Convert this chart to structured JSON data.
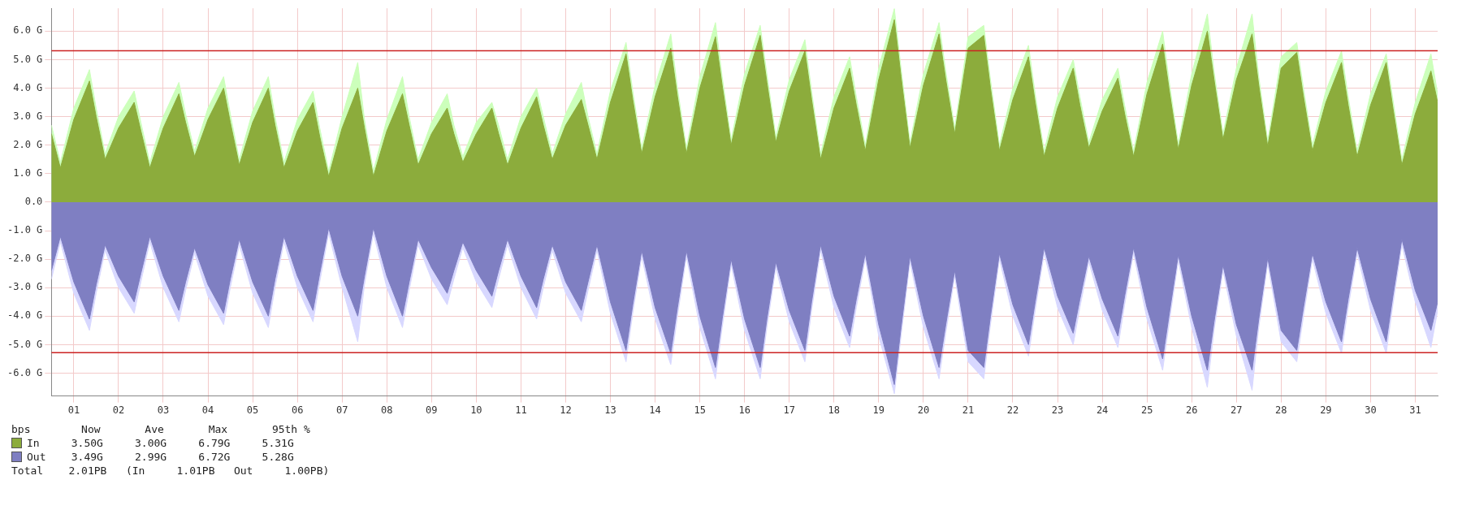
{
  "chart_data": {
    "type": "area",
    "x": [
      0,
      0.2,
      0.5,
      0.85,
      1,
      1.2,
      1.5,
      1.85,
      2,
      2.2,
      2.5,
      2.85,
      3,
      3.2,
      3.5,
      3.85,
      4,
      4.2,
      4.5,
      4.85,
      5,
      5.2,
      5.5,
      5.85,
      6,
      6.2,
      6.5,
      6.85,
      7,
      7.2,
      7.5,
      7.85,
      8,
      8.2,
      8.5,
      8.85,
      9,
      9.2,
      9.5,
      9.85,
      10,
      10.2,
      10.5,
      10.85,
      11,
      11.2,
      11.5,
      11.85,
      12,
      12.2,
      12.5,
      12.85,
      13,
      13.2,
      13.5,
      13.85,
      14,
      14.2,
      14.5,
      14.85,
      15,
      15.2,
      15.5,
      15.85,
      16,
      16.2,
      16.5,
      16.85,
      17,
      17.2,
      17.5,
      17.85,
      18,
      18.2,
      18.5,
      18.85,
      19,
      19.2,
      19.5,
      19.85,
      20,
      20.2,
      20.5,
      20.85,
      21,
      21.2,
      21.5,
      21.85,
      22,
      22.2,
      22.5,
      22.85,
      23,
      23.2,
      23.5,
      23.85,
      24,
      24.2,
      24.5,
      24.85,
      25,
      25.2,
      25.5,
      25.85,
      26,
      26.2,
      26.5,
      26.85,
      27,
      27.2,
      27.5,
      27.85,
      28,
      28.2,
      28.5,
      28.85,
      29,
      29.2,
      29.5,
      29.85,
      30,
      30.2,
      30.5,
      30.85,
      31
    ],
    "series": [
      {
        "color": "#ccffbb",
        "values": [
          2.7,
          1.4,
          3.3,
          4.65,
          3.3,
          1.7,
          3.0,
          3.9,
          2.8,
          1.4,
          3.0,
          4.2,
          3.1,
          1.8,
          3.3,
          4.4,
          3.1,
          1.5,
          3.2,
          4.4,
          3.0,
          1.4,
          2.9,
          3.9,
          2.6,
          1.1,
          3.0,
          4.9,
          2.9,
          1.1,
          2.9,
          4.4,
          3.0,
          1.5,
          2.8,
          3.8,
          2.7,
          1.6,
          2.8,
          3.5,
          2.7,
          1.5,
          3.0,
          4.0,
          3.0,
          1.7,
          3.1,
          4.2,
          3.0,
          1.7,
          3.9,
          5.6,
          3.9,
          1.9,
          4.1,
          5.9,
          4.0,
          1.9,
          4.4,
          6.3,
          4.4,
          2.2,
          4.5,
          6.2,
          4.5,
          2.3,
          4.3,
          5.7,
          3.9,
          1.7,
          3.7,
          5.1,
          3.7,
          2.0,
          4.7,
          6.79,
          4.7,
          2.1,
          4.5,
          6.3,
          4.6,
          2.6,
          5.8,
          6.2,
          4.3,
          2.0,
          4.0,
          5.5,
          3.8,
          1.8,
          3.7,
          5.0,
          3.7,
          2.1,
          3.6,
          4.7,
          3.4,
          1.8,
          4.2,
          6.0,
          4.2,
          2.05,
          4.5,
          6.6,
          4.6,
          2.4,
          4.7,
          6.6,
          4.4,
          2.15,
          5.1,
          5.6,
          4.0,
          2.0,
          3.9,
          5.3,
          3.7,
          1.8,
          3.8,
          5.2,
          3.6,
          1.5,
          3.5,
          5.2,
          3.8
        ]
      },
      {
        "name": "In",
        "color": "#8cac3c",
        "values": [
          2.4,
          1.2,
          2.9,
          4.25,
          3.0,
          1.5,
          2.6,
          3.5,
          2.5,
          1.2,
          2.6,
          3.8,
          2.8,
          1.6,
          2.9,
          4.0,
          2.8,
          1.3,
          2.8,
          4.0,
          2.7,
          1.2,
          2.5,
          3.5,
          2.3,
          0.9,
          2.6,
          4.0,
          2.6,
          0.9,
          2.5,
          3.8,
          2.7,
          1.3,
          2.4,
          3.3,
          2.4,
          1.4,
          2.4,
          3.3,
          2.4,
          1.3,
          2.6,
          3.7,
          2.7,
          1.5,
          2.7,
          3.6,
          2.7,
          1.5,
          3.5,
          5.2,
          3.6,
          1.7,
          3.7,
          5.4,
          3.7,
          1.7,
          4.0,
          5.8,
          4.1,
          2.0,
          4.1,
          5.85,
          4.2,
          2.1,
          3.9,
          5.3,
          3.6,
          1.5,
          3.3,
          4.7,
          3.4,
          1.8,
          4.3,
          6.4,
          4.4,
          1.9,
          4.1,
          5.9,
          4.3,
          2.4,
          5.4,
          5.85,
          4.0,
          1.8,
          3.6,
          5.1,
          3.5,
          1.6,
          3.3,
          4.7,
          3.4,
          1.9,
          3.2,
          4.35,
          3.1,
          1.6,
          3.8,
          5.55,
          3.9,
          1.85,
          4.1,
          6.0,
          4.3,
          2.2,
          4.3,
          5.9,
          4.1,
          1.95,
          4.7,
          5.25,
          3.7,
          1.8,
          3.5,
          4.9,
          3.4,
          1.6,
          3.4,
          4.9,
          3.3,
          1.3,
          3.1,
          4.6,
          3.5
        ]
      },
      {
        "color": "#d8d8ff",
        "values": [
          -2.7,
          -1.4,
          -3.2,
          -4.5,
          -3.2,
          -1.7,
          -3.0,
          -3.9,
          -2.8,
          -1.4,
          -3.0,
          -4.2,
          -3.1,
          -1.8,
          -3.3,
          -4.3,
          -3.0,
          -1.5,
          -3.2,
          -4.4,
          -3.0,
          -1.4,
          -3.0,
          -4.2,
          -2.8,
          -1.1,
          -3.0,
          -4.9,
          -2.9,
          -1.1,
          -3.0,
          -4.4,
          -3.1,
          -1.5,
          -2.7,
          -3.6,
          -2.7,
          -1.6,
          -2.8,
          -3.7,
          -2.7,
          -1.5,
          -3.0,
          -4.1,
          -3.0,
          -1.7,
          -3.2,
          -4.2,
          -3.1,
          -1.7,
          -3.9,
          -5.6,
          -3.9,
          -1.9,
          -4.1,
          -5.7,
          -4.0,
          -1.9,
          -4.4,
          -6.2,
          -4.4,
          -2.2,
          -4.5,
          -6.2,
          -4.4,
          -2.3,
          -4.2,
          -5.6,
          -3.8,
          -1.7,
          -3.7,
          -5.1,
          -3.7,
          -2.0,
          -4.7,
          -6.72,
          -4.7,
          -2.1,
          -4.4,
          -6.2,
          -4.6,
          -2.6,
          -5.6,
          -6.2,
          -4.3,
          -2.0,
          -4.0,
          -5.4,
          -3.8,
          -1.8,
          -3.7,
          -5.0,
          -3.7,
          -2.1,
          -3.8,
          -5.1,
          -3.6,
          -1.8,
          -4.1,
          -5.9,
          -4.2,
          -2.05,
          -4.4,
          -6.5,
          -4.5,
          -2.4,
          -4.7,
          -6.6,
          -4.4,
          -2.15,
          -4.9,
          -5.6,
          -4.0,
          -2.0,
          -3.9,
          -5.3,
          -3.7,
          -1.8,
          -3.8,
          -5.3,
          -3.6,
          -1.5,
          -3.5,
          -5.1,
          -3.8
        ]
      },
      {
        "name": "Out",
        "color": "#7f7fc2",
        "values": [
          -2.4,
          -1.2,
          -2.8,
          -4.1,
          -2.9,
          -1.5,
          -2.6,
          -3.5,
          -2.5,
          -1.2,
          -2.6,
          -3.8,
          -2.8,
          -1.6,
          -2.9,
          -3.9,
          -2.7,
          -1.3,
          -2.8,
          -4.0,
          -2.7,
          -1.2,
          -2.6,
          -3.8,
          -2.5,
          -0.9,
          -2.6,
          -4.0,
          -2.6,
          -0.9,
          -2.6,
          -4.0,
          -2.8,
          -1.3,
          -2.3,
          -3.2,
          -2.4,
          -1.4,
          -2.4,
          -3.3,
          -2.4,
          -1.3,
          -2.6,
          -3.7,
          -2.7,
          -1.5,
          -2.8,
          -3.8,
          -2.8,
          -1.5,
          -3.5,
          -5.2,
          -3.6,
          -1.7,
          -3.7,
          -5.3,
          -3.7,
          -1.7,
          -4.0,
          -5.8,
          -4.1,
          -2.0,
          -4.1,
          -5.8,
          -4.1,
          -2.1,
          -3.8,
          -5.2,
          -3.5,
          -1.5,
          -3.3,
          -4.7,
          -3.4,
          -1.8,
          -4.3,
          -6.4,
          -4.4,
          -1.9,
          -4.0,
          -5.8,
          -4.3,
          -2.4,
          -5.2,
          -5.8,
          -4.0,
          -1.8,
          -3.6,
          -5.0,
          -3.5,
          -1.6,
          -3.3,
          -4.6,
          -3.4,
          -1.9,
          -3.4,
          -4.7,
          -3.3,
          -1.6,
          -3.7,
          -5.5,
          -3.9,
          -1.85,
          -4.0,
          -5.9,
          -4.2,
          -2.2,
          -4.3,
          -5.9,
          -4.1,
          -1.95,
          -4.5,
          -5.2,
          -3.7,
          -1.8,
          -3.5,
          -4.9,
          -3.4,
          -1.6,
          -3.4,
          -4.9,
          -3.3,
          -1.3,
          -3.1,
          -4.5,
          -3.5
        ]
      }
    ],
    "xlim": [
      0,
      31
    ],
    "xticks": [
      {
        "value": 0.5,
        "label": "01"
      },
      {
        "value": 1.5,
        "label": "02"
      },
      {
        "value": 2.5,
        "label": "03"
      },
      {
        "value": 3.5,
        "label": "04"
      },
      {
        "value": 4.5,
        "label": "05"
      },
      {
        "value": 5.5,
        "label": "06"
      },
      {
        "value": 6.5,
        "label": "07"
      },
      {
        "value": 7.5,
        "label": "08"
      },
      {
        "value": 8.5,
        "label": "09"
      },
      {
        "value": 9.5,
        "label": "10"
      },
      {
        "value": 10.5,
        "label": "11"
      },
      {
        "value": 11.5,
        "label": "12"
      },
      {
        "value": 12.5,
        "label": "13"
      },
      {
        "value": 13.5,
        "label": "14"
      },
      {
        "value": 14.5,
        "label": "15"
      },
      {
        "value": 15.5,
        "label": "16"
      },
      {
        "value": 16.5,
        "label": "17"
      },
      {
        "value": 17.5,
        "label": "18"
      },
      {
        "value": 18.5,
        "label": "19"
      },
      {
        "value": 19.5,
        "label": "20"
      },
      {
        "value": 20.5,
        "label": "21"
      },
      {
        "value": 21.5,
        "label": "22"
      },
      {
        "value": 22.5,
        "label": "23"
      },
      {
        "value": 23.5,
        "label": "24"
      },
      {
        "value": 24.5,
        "label": "25"
      },
      {
        "value": 25.5,
        "label": "26"
      },
      {
        "value": 26.5,
        "label": "27"
      },
      {
        "value": 27.5,
        "label": "28"
      },
      {
        "value": 28.5,
        "label": "29"
      },
      {
        "value": 29.5,
        "label": "30"
      },
      {
        "value": 30.5,
        "label": "31"
      }
    ],
    "ylim": [
      -6.8,
      6.8
    ],
    "yticks": [
      {
        "value": -6,
        "label": "-6.0 G"
      },
      {
        "value": -5,
        "label": "-5.0 G"
      },
      {
        "value": -4,
        "label": "-4.0 G"
      },
      {
        "value": -3,
        "label": "-3.0 G"
      },
      {
        "value": -2,
        "label": "-2.0 G"
      },
      {
        "value": -1,
        "label": "-1.0 G"
      },
      {
        "value": 0,
        "label": "0.0"
      },
      {
        "value": 1,
        "label": "1.0 G"
      },
      {
        "value": 2,
        "label": "2.0 G"
      },
      {
        "value": 3,
        "label": "3.0 G"
      },
      {
        "value": 4,
        "label": "4.0 G"
      },
      {
        "value": 5,
        "label": "5.0 G"
      },
      {
        "value": 6,
        "label": "6.0 G"
      }
    ],
    "ref_lines": [
      {
        "axis": "y",
        "value": 5.31,
        "color": "#cc2222"
      },
      {
        "axis": "y",
        "value": -5.28,
        "color": "#cc2222"
      }
    ],
    "grid": true,
    "legend": "bottom left",
    "annotations": [
      "bps        Now       Ave       Max       95th %",
      "  3.50G     3.00G     6.79G     5.31G",
      "  3.49G     2.99G     6.72G     5.28G",
      "Total    2.01PB   (In     1.01PB   Out     1.00PB)"
    ]
  }
}
